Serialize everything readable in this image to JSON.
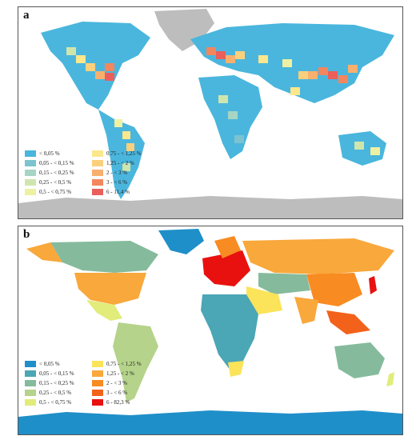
{
  "panels": [
    {
      "label": "a",
      "legend": [
        {
          "text": "< 0,05 %",
          "color": "#4ab6dd"
        },
        {
          "text": "0,05 - < 0,15 %",
          "color": "#7cc3cf"
        },
        {
          "text": "0,15 - < 0,25 %",
          "color": "#a7d5c4"
        },
        {
          "text": "0,25 - < 0,5 %",
          "color": "#cfe5ae"
        },
        {
          "text": "0,5 - < 0,75 %",
          "color": "#eef1a2"
        },
        {
          "text": "0,75 - < 1,25 %",
          "color": "#fbe78c"
        },
        {
          "text": "1,25 - < 2 %",
          "color": "#fbd07c"
        },
        {
          "text": "2 - < 3 %",
          "color": "#f8b06e"
        },
        {
          "text": "3 - < 6 %",
          "color": "#f2865f"
        },
        {
          "text": "6 - 11,4 %",
          "color": "#ea5f5c"
        }
      ]
    },
    {
      "label": "b",
      "legend": [
        {
          "text": "< 0,05 %",
          "color": "#1f8fc9"
        },
        {
          "text": "0,05 - < 0,15 %",
          "color": "#4ba6b5"
        },
        {
          "text": "0,15 - < 0,25 %",
          "color": "#85bb9c"
        },
        {
          "text": "0,25 - < 0,5 %",
          "color": "#b5d38a"
        },
        {
          "text": "0,5 - < 0,75 %",
          "color": "#e1ec7a"
        },
        {
          "text": "0,75 - < 1,25 %",
          "color": "#fbe35a"
        },
        {
          "text": "1,25 - < 2 %",
          "color": "#f9a83b"
        },
        {
          "text": "2 - < 3 %",
          "color": "#f88b22"
        },
        {
          "text": "3 - < 6 %",
          "color": "#f3621b"
        },
        {
          "text": "6 - 82,3 %",
          "color": "#e8110f"
        }
      ]
    }
  ],
  "map_colors": {
    "land_grey": "#bdbdbd",
    "ocean_blue": "#4ab6dd"
  }
}
